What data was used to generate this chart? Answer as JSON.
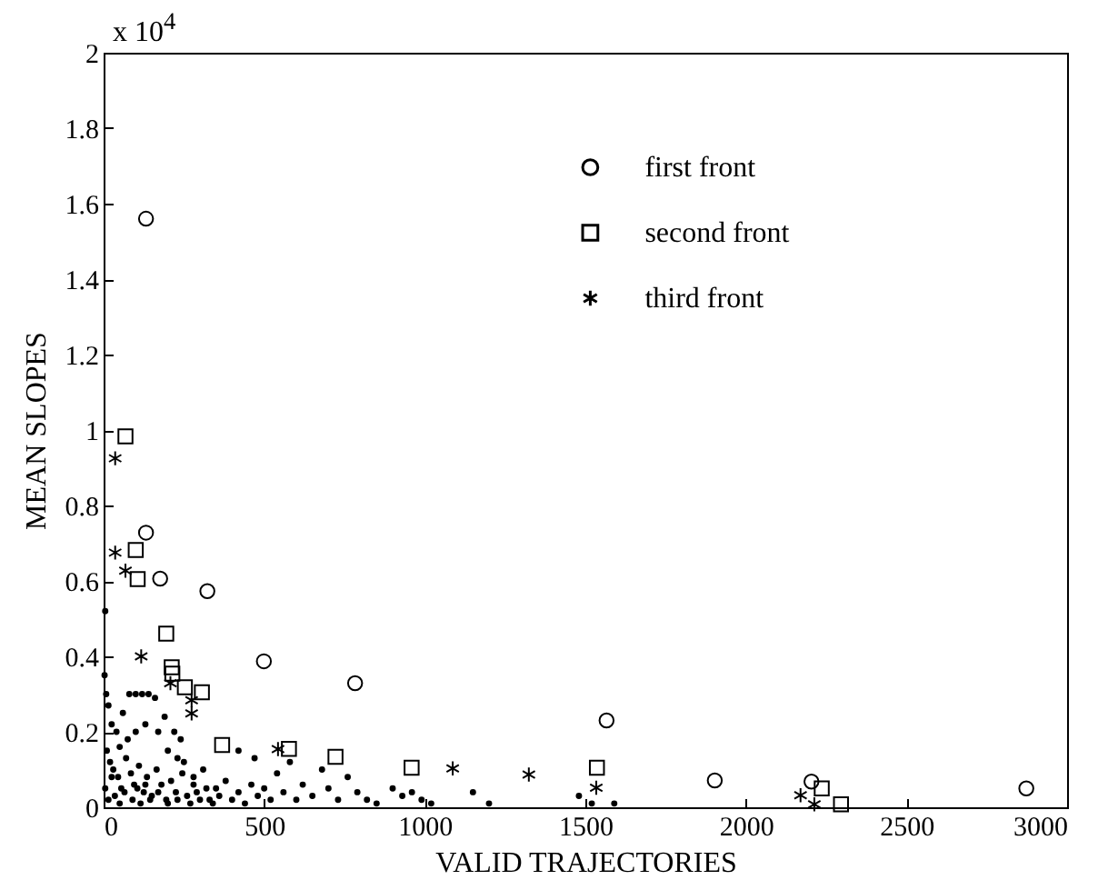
{
  "chart_data": {
    "type": "scatter",
    "xlabel": "VALID   TRAJECTORIES",
    "ylabel": "MEAN   SLOPES",
    "annotations": [
      "x 10$^{4}$"
    ],
    "xlim": [
      0,
      3000
    ],
    "ylim": [
      0,
      2
    ],
    "xticks": [
      0,
      500,
      1000,
      1500,
      2000,
      2500,
      3000
    ],
    "yticks": [
      0,
      0.2,
      0.4,
      0.6,
      0.8,
      1,
      1.2,
      1.4,
      1.6,
      1.8,
      2
    ],
    "grid": false,
    "legend": "top right",
    "series": [
      {
        "color": "#000000",
        "marker": "circle",
        "x": [
          5,
          3,
          8,
          15,
          25,
          40,
          60,
          80,
          100,
          120,
          140,
          160,
          190,
          220,
          240,
          10,
          20,
          30,
          45,
          55,
          70,
          85,
          95,
          110,
          125,
          135,
          150,
          165,
          180,
          195,
          210,
          225,
          245,
          260,
          280,
          300,
          320,
          340,
          360,
          380,
          400,
          420,
          440,
          460,
          480,
          500,
          520,
          540,
          560,
          580,
          600,
          620,
          650,
          680,
          700,
          730,
          760,
          790,
          820,
          850,
          900,
          930,
          960,
          990,
          1020,
          1150,
          1200,
          1480,
          1520,
          1590,
          5,
          15,
          25,
          35,
          50,
          65,
          90,
          105,
          115,
          130,
          145,
          170,
          200,
          230,
          270,
          290,
          310,
          330,
          350,
          50,
          75,
          100,
          130,
          170,
          200,
          230,
          250,
          420,
          470,
          280
        ],
        "values": [
          0.52,
          0.35,
          0.3,
          0.27,
          0.22,
          0.2,
          0.25,
          0.3,
          0.3,
          0.3,
          0.3,
          0.29,
          0.24,
          0.2,
          0.18,
          0.15,
          0.12,
          0.1,
          0.08,
          0.05,
          0.13,
          0.09,
          0.06,
          0.11,
          0.04,
          0.08,
          0.03,
          0.1,
          0.06,
          0.02,
          0.07,
          0.04,
          0.09,
          0.03,
          0.06,
          0.02,
          0.05,
          0.01,
          0.03,
          0.07,
          0.02,
          0.04,
          0.01,
          0.06,
          0.03,
          0.05,
          0.02,
          0.09,
          0.04,
          0.12,
          0.02,
          0.06,
          0.03,
          0.1,
          0.05,
          0.02,
          0.08,
          0.04,
          0.02,
          0.01,
          0.05,
          0.03,
          0.04,
          0.02,
          0.01,
          0.04,
          0.01,
          0.03,
          0.01,
          0.01,
          0.05,
          0.02,
          0.08,
          0.03,
          0.01,
          0.04,
          0.02,
          0.05,
          0.01,
          0.06,
          0.02,
          0.04,
          0.01,
          0.02,
          0.01,
          0.04,
          0.1,
          0.02,
          0.05,
          0.16,
          0.18,
          0.2,
          0.22,
          0.2,
          0.15,
          0.13,
          0.12,
          0.15,
          0.13,
          0.08
        ]
      },
      {
        "name": "first front",
        "color": "#000000",
        "marker": "circle",
        "x": [
          132,
          132,
          176,
          323,
          499,
          783,
          1566,
          1903,
          2204,
          2873
        ],
        "values": [
          1.56,
          0.728,
          0.606,
          0.573,
          0.387,
          0.329,
          0.23,
          0.071,
          0.068,
          0.05
        ]
      },
      {
        "name": "second front",
        "color": "#000000",
        "marker": "square",
        "x": [
          68,
          100,
          106,
          195,
          212,
          214,
          253,
          306,
          369,
          577,
          722,
          959,
          1536,
          2236,
          2296
        ],
        "values": [
          0.983,
          0.682,
          0.605,
          0.46,
          0.371,
          0.354,
          0.318,
          0.305,
          0.165,
          0.155,
          0.134,
          0.105,
          0.105,
          0.05,
          0.008
        ]
      },
      {
        "name": "third front",
        "color": "#000000",
        "marker": "cross",
        "x": [
          36,
          36,
          68,
          117,
          208,
          274,
          274,
          543,
          1087,
          1324,
          1534,
          2170,
          2213
        ],
        "values": [
          0.925,
          0.675,
          0.627,
          0.4,
          0.329,
          0.284,
          0.249,
          0.154,
          0.103,
          0.087,
          0.052,
          0.032,
          0.008
        ]
      }
    ]
  }
}
